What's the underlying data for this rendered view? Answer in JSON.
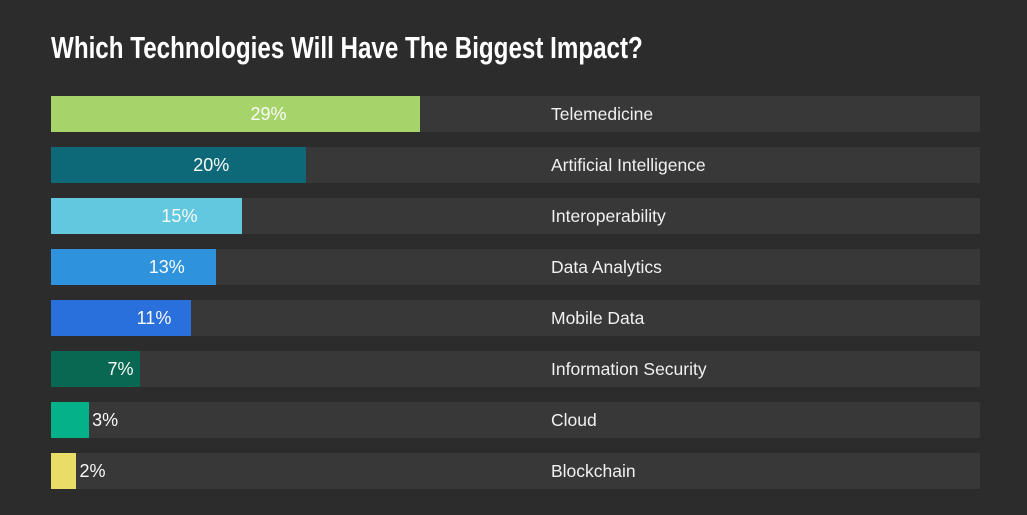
{
  "page": {
    "background": "#2c2c2c",
    "row_track_color": "#383838",
    "title_color": "#ffffff",
    "value_label_color": "#fafafa",
    "category_label_color": "#f0f0f0"
  },
  "chart_data": {
    "type": "bar",
    "orientation": "horizontal",
    "title": "Which Technologies Will Have The Biggest Impact?",
    "categories": [
      "Telemedicine",
      "Artificial Intelligence",
      "Interoperability",
      "Data Analytics",
      "Mobile Data",
      "Information Security",
      "Cloud",
      "Blockchain"
    ],
    "values": [
      29,
      20,
      15,
      13,
      11,
      7,
      3,
      2
    ],
    "value_labels": [
      "29%",
      "20%",
      "15%",
      "13%",
      "11%",
      "7%",
      "3%",
      "2%"
    ],
    "bar_colors": [
      "#a7d46a",
      "#0d6877",
      "#61c8e0",
      "#2e92dc",
      "#2970dd",
      "#086851",
      "#04b189",
      "#eadd67"
    ],
    "xlim": [
      0,
      73
    ],
    "grid": false,
    "legend": false,
    "inside_label_min_value": 7,
    "ylabel": "",
    "xlabel": ""
  }
}
